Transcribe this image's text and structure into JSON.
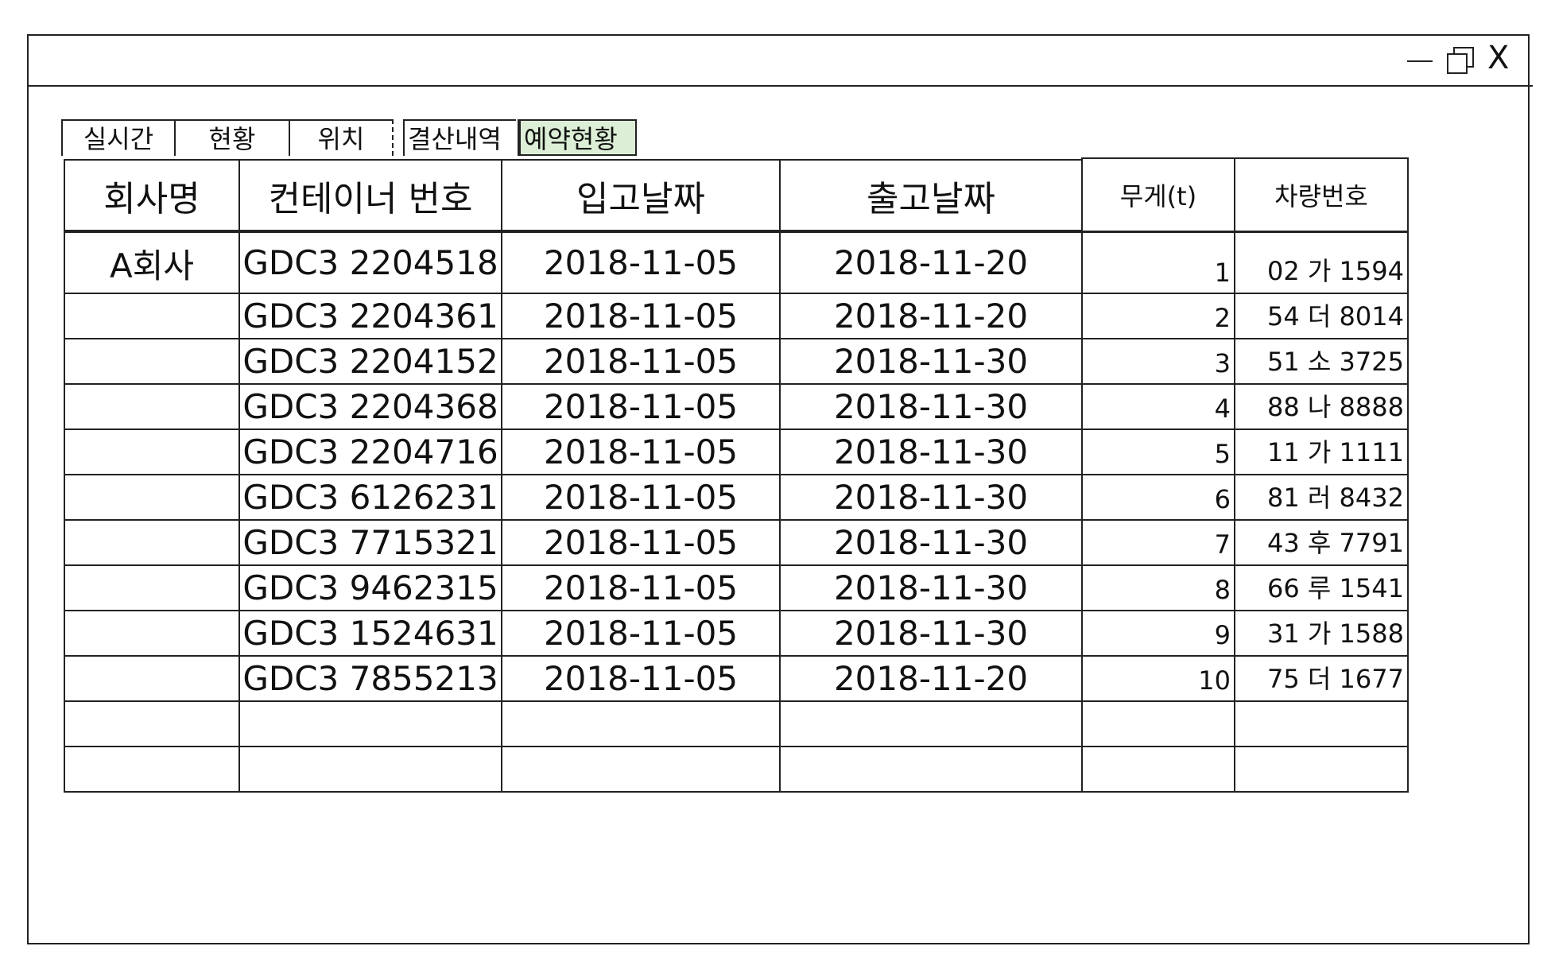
{
  "window": {
    "minimize_icon": "minimize-icon",
    "maximize_icon": "restore-icon",
    "close_label": "X"
  },
  "tabs": [
    {
      "label": "실시간"
    },
    {
      "label": "현황"
    },
    {
      "label": "위치"
    },
    {
      "label": "결산내역"
    },
    {
      "label": "예약현황",
      "active": true
    }
  ],
  "colors": {
    "active_tab": "#dcefd6"
  },
  "main_table": {
    "headers": [
      "회사명",
      "컨테이너 번호",
      "입고날짜",
      "출고날짜"
    ],
    "rows": [
      {
        "company": "A회사",
        "container": "GDC3 2204518",
        "in": "2018-11-05",
        "out": "2018-11-20"
      },
      {
        "company": "",
        "container": "GDC3 2204361",
        "in": "2018-11-05",
        "out": "2018-11-20"
      },
      {
        "company": "",
        "container": "GDC3 2204152",
        "in": "2018-11-05",
        "out": "2018-11-30"
      },
      {
        "company": "",
        "container": "GDC3 2204368",
        "in": "2018-11-05",
        "out": "2018-11-30"
      },
      {
        "company": "",
        "container": "GDC3 2204716",
        "in": "2018-11-05",
        "out": "2018-11-30"
      },
      {
        "company": "",
        "container": "GDC3 6126231",
        "in": "2018-11-05",
        "out": "2018-11-30"
      },
      {
        "company": "",
        "container": "GDC3 7715321",
        "in": "2018-11-05",
        "out": "2018-11-30"
      },
      {
        "company": "",
        "container": "GDC3 9462315",
        "in": "2018-11-05",
        "out": "2018-11-30"
      },
      {
        "company": "",
        "container": "GDC3 1524631",
        "in": "2018-11-05",
        "out": "2018-11-30"
      },
      {
        "company": "",
        "container": "GDC3 7855213",
        "in": "2018-11-05",
        "out": "2018-11-20"
      },
      {
        "company": "",
        "container": "",
        "in": "",
        "out": ""
      },
      {
        "company": "",
        "container": "",
        "in": "",
        "out": ""
      }
    ]
  },
  "side_table": {
    "headers": [
      "무게(t)",
      "차량번호"
    ],
    "rows": [
      {
        "weight": "1",
        "plate": "02 가 1594"
      },
      {
        "weight": "2",
        "plate": "54 더 8014"
      },
      {
        "weight": "3",
        "plate": "51 소 3725"
      },
      {
        "weight": "4",
        "plate": "88 나 8888"
      },
      {
        "weight": "5",
        "plate": "11 가 1111"
      },
      {
        "weight": "6",
        "plate": "81 러 8432"
      },
      {
        "weight": "7",
        "plate": "43 후 7791"
      },
      {
        "weight": "8",
        "plate": "66 루 1541"
      },
      {
        "weight": "9",
        "plate": "31 가 1588"
      },
      {
        "weight": "10",
        "plate": "75 더 1677"
      },
      {
        "weight": "",
        "plate": ""
      },
      {
        "weight": "",
        "plate": ""
      }
    ]
  }
}
